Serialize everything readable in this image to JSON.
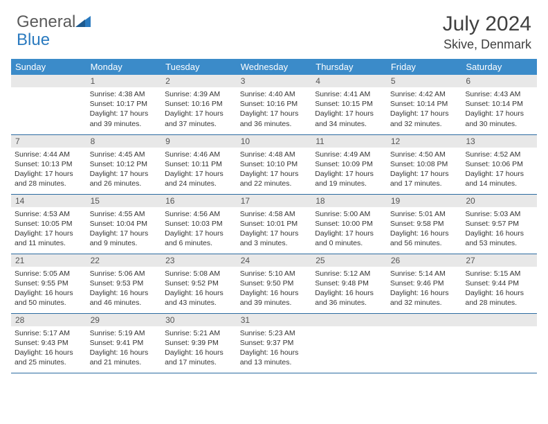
{
  "branding": {
    "logo_part1": "General",
    "logo_part2": "Blue"
  },
  "header": {
    "title": "July 2024",
    "location": "Skive, Denmark"
  },
  "colors": {
    "header_bg": "#3b8bc9",
    "header_text": "#ffffff",
    "daynum_bg": "#e8e8e8",
    "daynum_text": "#555555",
    "body_text": "#333333",
    "row_border": "#2a6aa0",
    "title_text": "#404040",
    "logo_gray": "#5a5a5a",
    "logo_blue": "#2a7abf"
  },
  "typography": {
    "title_fontsize": 30,
    "location_fontsize": 18,
    "dayheader_fontsize": 13,
    "daynum_fontsize": 12,
    "cell_fontsize": 10.5
  },
  "calendar": {
    "day_headers": [
      "Sunday",
      "Monday",
      "Tuesday",
      "Wednesday",
      "Thursday",
      "Friday",
      "Saturday"
    ],
    "weeks": [
      [
        null,
        {
          "n": "1",
          "sr": "Sunrise: 4:38 AM",
          "ss": "Sunset: 10:17 PM",
          "d1": "Daylight: 17 hours",
          "d2": "and 39 minutes."
        },
        {
          "n": "2",
          "sr": "Sunrise: 4:39 AM",
          "ss": "Sunset: 10:16 PM",
          "d1": "Daylight: 17 hours",
          "d2": "and 37 minutes."
        },
        {
          "n": "3",
          "sr": "Sunrise: 4:40 AM",
          "ss": "Sunset: 10:16 PM",
          "d1": "Daylight: 17 hours",
          "d2": "and 36 minutes."
        },
        {
          "n": "4",
          "sr": "Sunrise: 4:41 AM",
          "ss": "Sunset: 10:15 PM",
          "d1": "Daylight: 17 hours",
          "d2": "and 34 minutes."
        },
        {
          "n": "5",
          "sr": "Sunrise: 4:42 AM",
          "ss": "Sunset: 10:14 PM",
          "d1": "Daylight: 17 hours",
          "d2": "and 32 minutes."
        },
        {
          "n": "6",
          "sr": "Sunrise: 4:43 AM",
          "ss": "Sunset: 10:14 PM",
          "d1": "Daylight: 17 hours",
          "d2": "and 30 minutes."
        }
      ],
      [
        {
          "n": "7",
          "sr": "Sunrise: 4:44 AM",
          "ss": "Sunset: 10:13 PM",
          "d1": "Daylight: 17 hours",
          "d2": "and 28 minutes."
        },
        {
          "n": "8",
          "sr": "Sunrise: 4:45 AM",
          "ss": "Sunset: 10:12 PM",
          "d1": "Daylight: 17 hours",
          "d2": "and 26 minutes."
        },
        {
          "n": "9",
          "sr": "Sunrise: 4:46 AM",
          "ss": "Sunset: 10:11 PM",
          "d1": "Daylight: 17 hours",
          "d2": "and 24 minutes."
        },
        {
          "n": "10",
          "sr": "Sunrise: 4:48 AM",
          "ss": "Sunset: 10:10 PM",
          "d1": "Daylight: 17 hours",
          "d2": "and 22 minutes."
        },
        {
          "n": "11",
          "sr": "Sunrise: 4:49 AM",
          "ss": "Sunset: 10:09 PM",
          "d1": "Daylight: 17 hours",
          "d2": "and 19 minutes."
        },
        {
          "n": "12",
          "sr": "Sunrise: 4:50 AM",
          "ss": "Sunset: 10:08 PM",
          "d1": "Daylight: 17 hours",
          "d2": "and 17 minutes."
        },
        {
          "n": "13",
          "sr": "Sunrise: 4:52 AM",
          "ss": "Sunset: 10:06 PM",
          "d1": "Daylight: 17 hours",
          "d2": "and 14 minutes."
        }
      ],
      [
        {
          "n": "14",
          "sr": "Sunrise: 4:53 AM",
          "ss": "Sunset: 10:05 PM",
          "d1": "Daylight: 17 hours",
          "d2": "and 11 minutes."
        },
        {
          "n": "15",
          "sr": "Sunrise: 4:55 AM",
          "ss": "Sunset: 10:04 PM",
          "d1": "Daylight: 17 hours",
          "d2": "and 9 minutes."
        },
        {
          "n": "16",
          "sr": "Sunrise: 4:56 AM",
          "ss": "Sunset: 10:03 PM",
          "d1": "Daylight: 17 hours",
          "d2": "and 6 minutes."
        },
        {
          "n": "17",
          "sr": "Sunrise: 4:58 AM",
          "ss": "Sunset: 10:01 PM",
          "d1": "Daylight: 17 hours",
          "d2": "and 3 minutes."
        },
        {
          "n": "18",
          "sr": "Sunrise: 5:00 AM",
          "ss": "Sunset: 10:00 PM",
          "d1": "Daylight: 17 hours",
          "d2": "and 0 minutes."
        },
        {
          "n": "19",
          "sr": "Sunrise: 5:01 AM",
          "ss": "Sunset: 9:58 PM",
          "d1": "Daylight: 16 hours",
          "d2": "and 56 minutes."
        },
        {
          "n": "20",
          "sr": "Sunrise: 5:03 AM",
          "ss": "Sunset: 9:57 PM",
          "d1": "Daylight: 16 hours",
          "d2": "and 53 minutes."
        }
      ],
      [
        {
          "n": "21",
          "sr": "Sunrise: 5:05 AM",
          "ss": "Sunset: 9:55 PM",
          "d1": "Daylight: 16 hours",
          "d2": "and 50 minutes."
        },
        {
          "n": "22",
          "sr": "Sunrise: 5:06 AM",
          "ss": "Sunset: 9:53 PM",
          "d1": "Daylight: 16 hours",
          "d2": "and 46 minutes."
        },
        {
          "n": "23",
          "sr": "Sunrise: 5:08 AM",
          "ss": "Sunset: 9:52 PM",
          "d1": "Daylight: 16 hours",
          "d2": "and 43 minutes."
        },
        {
          "n": "24",
          "sr": "Sunrise: 5:10 AM",
          "ss": "Sunset: 9:50 PM",
          "d1": "Daylight: 16 hours",
          "d2": "and 39 minutes."
        },
        {
          "n": "25",
          "sr": "Sunrise: 5:12 AM",
          "ss": "Sunset: 9:48 PM",
          "d1": "Daylight: 16 hours",
          "d2": "and 36 minutes."
        },
        {
          "n": "26",
          "sr": "Sunrise: 5:14 AM",
          "ss": "Sunset: 9:46 PM",
          "d1": "Daylight: 16 hours",
          "d2": "and 32 minutes."
        },
        {
          "n": "27",
          "sr": "Sunrise: 5:15 AM",
          "ss": "Sunset: 9:44 PM",
          "d1": "Daylight: 16 hours",
          "d2": "and 28 minutes."
        }
      ],
      [
        {
          "n": "28",
          "sr": "Sunrise: 5:17 AM",
          "ss": "Sunset: 9:43 PM",
          "d1": "Daylight: 16 hours",
          "d2": "and 25 minutes."
        },
        {
          "n": "29",
          "sr": "Sunrise: 5:19 AM",
          "ss": "Sunset: 9:41 PM",
          "d1": "Daylight: 16 hours",
          "d2": "and 21 minutes."
        },
        {
          "n": "30",
          "sr": "Sunrise: 5:21 AM",
          "ss": "Sunset: 9:39 PM",
          "d1": "Daylight: 16 hours",
          "d2": "and 17 minutes."
        },
        {
          "n": "31",
          "sr": "Sunrise: 5:23 AM",
          "ss": "Sunset: 9:37 PM",
          "d1": "Daylight: 16 hours",
          "d2": "and 13 minutes."
        },
        null,
        null,
        null
      ]
    ]
  }
}
